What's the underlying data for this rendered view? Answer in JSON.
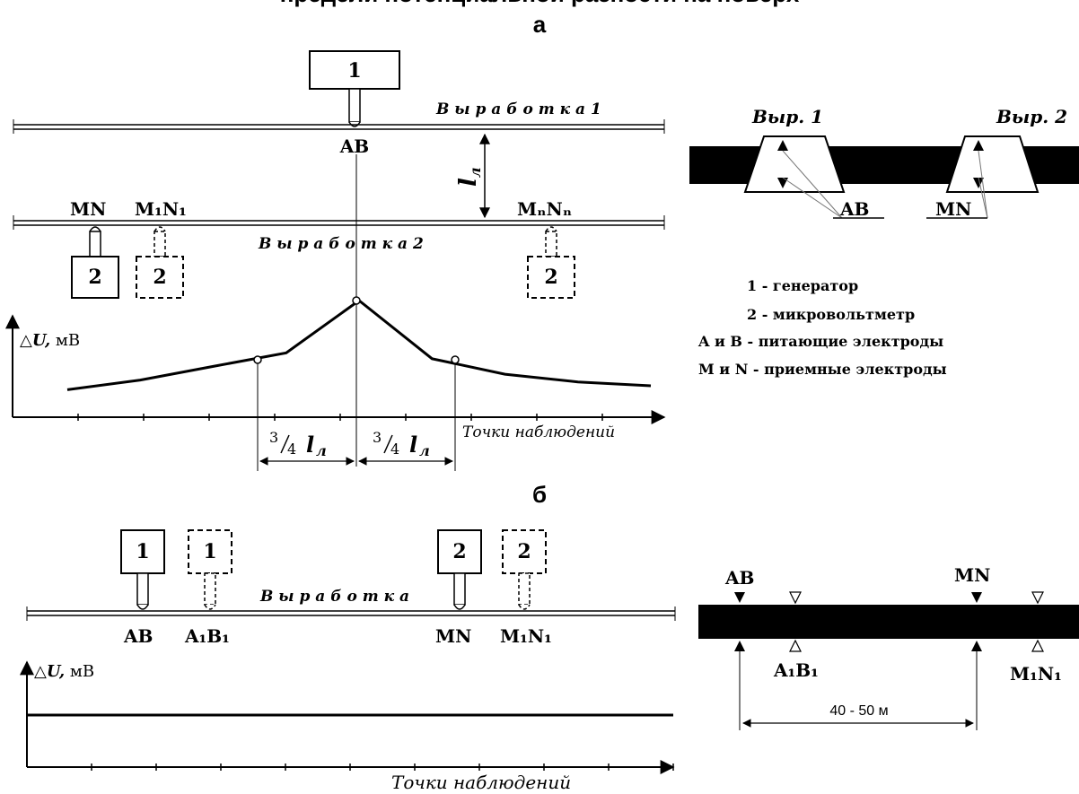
{
  "header": {
    "clipped_title": "предели потенциальной разности на поверх",
    "label_a": "а",
    "label_b": "б"
  },
  "panel_a": {
    "generator_number": "1",
    "receiver_number": "2",
    "drift_1": "В ы р а б о т к а  1",
    "drift_2": "В ы р а б о т к а  2",
    "ab": "AB",
    "mn": "MN",
    "m1n1": "M₁N₁",
    "mnnn": "MₙNₙ",
    "distance_l": "l",
    "distance_l_sub": "л",
    "y_axis_symbol": "△",
    "y_axis_var": "U,",
    "y_axis_unit": " мВ",
    "x_axis_label": "Точки наблюдений",
    "fraction_num": "3",
    "fraction_den": "4",
    "left_span_label_l": "l",
    "left_span_label_sub": "л",
    "right_span_label_l": "l",
    "right_span_label_sub": "л"
  },
  "panel_a_right": {
    "vyr1": "Выр. 1",
    "vyr2": "Выр. 2",
    "ab": "AB",
    "mn": "MN"
  },
  "legend": {
    "items": [
      {
        "key": "1",
        "text": " - генератор"
      },
      {
        "key": "2",
        "text": " - микровольтметр"
      },
      {
        "key": "A и B",
        "text": " - питающие  электроды"
      },
      {
        "key": "M и N",
        "text": " - приемные  электроды"
      }
    ]
  },
  "panel_b": {
    "gen_number": "1",
    "rec_number": "2",
    "drift": "В ы р а б о т к а",
    "ab": "AB",
    "a1b1": "A₁B₁",
    "mn": "MN",
    "m1n1": "M₁N₁",
    "y_axis_symbol": "△",
    "y_axis_var": "U,",
    "y_axis_unit": " мВ",
    "x_axis_label": "Точки  наблюдений"
  },
  "panel_b_right": {
    "ab": "AB",
    "mn": "MN",
    "a1b1": "A₁B₁",
    "m1n1": "M₁N₁",
    "distance": "40 - 50 м"
  },
  "chart_data": [
    {
      "type": "line",
      "title": "",
      "xlabel": "Точки наблюдений",
      "ylabel": "△U, мВ",
      "annotations": [
        "3/4 lл",
        "3/4 lл"
      ],
      "series": [
        {
          "values": [
            0.08,
            0.18,
            0.32,
            0.46,
            1.0,
            0.4,
            0.24,
            0.16,
            0.12
          ]
        }
      ]
    },
    {
      "type": "line",
      "title": "",
      "xlabel": "Точки  наблюдений",
      "ylabel": "△U, мВ",
      "series": [
        {
          "values": [
            1,
            1,
            1,
            1,
            1,
            1,
            1,
            1,
            1,
            1
          ]
        }
      ]
    }
  ]
}
